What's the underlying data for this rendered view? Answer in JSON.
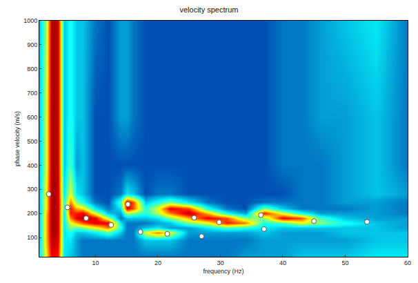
{
  "chart_data": {
    "type": "heatmap",
    "title": "velocity spectrum",
    "x_label": "frequency (Hz)",
    "y_label": "phase velocity (m/s)",
    "xlim": [
      1,
      60
    ],
    "ylim": [
      20,
      1000
    ],
    "xticks": [
      10,
      20,
      30,
      40,
      50,
      60
    ],
    "yticks": [
      100,
      200,
      300,
      400,
      500,
      600,
      700,
      800,
      900,
      1000
    ],
    "grid": false,
    "zlim": [
      0,
      1
    ],
    "heatmap": {
      "x": [
        1,
        2,
        3,
        4,
        5,
        6,
        7,
        8,
        10,
        12,
        14,
        15,
        16,
        18,
        20,
        22,
        25,
        28,
        31,
        34,
        37,
        40,
        43,
        46,
        50,
        55,
        60
      ],
      "y": [
        20,
        90,
        120,
        140,
        160,
        180,
        200,
        220,
        245,
        280,
        400,
        600,
        1000
      ],
      "z_by_x": [
        [
          0.35,
          0.3,
          0.3,
          0.3,
          0.3,
          0.3,
          0.3,
          0.3,
          0.3,
          0.3,
          0.3,
          0.3,
          0.3
        ],
        [
          0.6,
          0.65,
          0.65,
          0.65,
          0.65,
          0.65,
          0.65,
          0.6,
          0.6,
          0.6,
          0.55,
          0.55,
          0.5
        ],
        [
          0.9,
          0.95,
          0.97,
          0.97,
          0.97,
          0.97,
          0.97,
          0.97,
          0.97,
          0.97,
          0.97,
          0.97,
          0.97
        ],
        [
          0.85,
          0.9,
          0.92,
          0.92,
          0.92,
          0.92,
          0.92,
          0.92,
          0.92,
          0.92,
          0.92,
          0.92,
          0.92
        ],
        [
          0.35,
          0.35,
          0.35,
          0.35,
          0.35,
          0.35,
          0.35,
          0.4,
          0.4,
          0.35,
          0.3,
          0.3,
          0.3
        ],
        [
          0.3,
          0.35,
          0.4,
          0.5,
          0.6,
          0.75,
          0.85,
          0.85,
          0.75,
          0.6,
          0.45,
          0.4,
          0.4
        ],
        [
          0.25,
          0.25,
          0.3,
          0.45,
          0.7,
          0.9,
          0.85,
          0.7,
          0.5,
          0.35,
          0.25,
          0.3,
          0.3
        ],
        [
          0.2,
          0.2,
          0.3,
          0.5,
          0.8,
          0.95,
          0.9,
          0.65,
          0.4,
          0.3,
          0.3,
          0.3,
          0.3
        ],
        [
          0.2,
          0.2,
          0.35,
          0.6,
          0.9,
          0.9,
          0.6,
          0.35,
          0.2,
          0.15,
          0.15,
          0.15,
          0.2
        ],
        [
          0.2,
          0.2,
          0.45,
          0.75,
          0.9,
          0.55,
          0.3,
          0.2,
          0.15,
          0.15,
          0.15,
          0.15,
          0.15
        ],
        [
          0.2,
          0.2,
          0.3,
          0.4,
          0.35,
          0.2,
          0.25,
          0.35,
          0.45,
          0.2,
          0.15,
          0.25,
          0.25
        ],
        [
          0.2,
          0.2,
          0.2,
          0.2,
          0.2,
          0.3,
          0.55,
          0.9,
          0.9,
          0.35,
          0.15,
          0.25,
          0.25
        ],
        [
          0.2,
          0.2,
          0.2,
          0.2,
          0.2,
          0.3,
          0.5,
          0.8,
          0.8,
          0.3,
          0.15,
          0.2,
          0.2
        ],
        [
          0.2,
          0.3,
          0.6,
          0.3,
          0.2,
          0.3,
          0.4,
          0.4,
          0.3,
          0.15,
          0.15,
          0.15,
          0.15
        ],
        [
          0.2,
          0.3,
          0.75,
          0.35,
          0.25,
          0.35,
          0.55,
          0.6,
          0.4,
          0.2,
          0.15,
          0.15,
          0.15
        ],
        [
          0.2,
          0.3,
          0.6,
          0.25,
          0.3,
          0.5,
          0.75,
          0.9,
          0.5,
          0.2,
          0.15,
          0.15,
          0.15
        ],
        [
          0.2,
          0.2,
          0.25,
          0.25,
          0.5,
          0.7,
          0.95,
          0.8,
          0.35,
          0.15,
          0.15,
          0.15,
          0.15
        ],
        [
          0.2,
          0.2,
          0.25,
          0.35,
          0.6,
          0.9,
          0.7,
          0.4,
          0.2,
          0.15,
          0.15,
          0.15,
          0.15
        ],
        [
          0.2,
          0.2,
          0.25,
          0.45,
          0.85,
          0.8,
          0.4,
          0.2,
          0.15,
          0.15,
          0.15,
          0.15,
          0.15
        ],
        [
          0.25,
          0.2,
          0.25,
          0.4,
          0.75,
          0.5,
          0.25,
          0.15,
          0.15,
          0.15,
          0.15,
          0.15,
          0.15
        ],
        [
          0.25,
          0.25,
          0.3,
          0.35,
          0.4,
          0.5,
          0.85,
          0.5,
          0.2,
          0.15,
          0.15,
          0.15,
          0.15
        ],
        [
          0.25,
          0.25,
          0.25,
          0.3,
          0.45,
          0.9,
          0.6,
          0.3,
          0.2,
          0.15,
          0.2,
          0.2,
          0.2
        ],
        [
          0.3,
          0.25,
          0.25,
          0.3,
          0.6,
          0.8,
          0.4,
          0.2,
          0.2,
          0.2,
          0.2,
          0.2,
          0.2
        ],
        [
          0.3,
          0.25,
          0.25,
          0.3,
          0.5,
          0.45,
          0.25,
          0.2,
          0.2,
          0.2,
          0.2,
          0.25,
          0.25
        ],
        [
          0.3,
          0.25,
          0.3,
          0.3,
          0.4,
          0.3,
          0.25,
          0.2,
          0.25,
          0.25,
          0.25,
          0.25,
          0.3
        ],
        [
          0.35,
          0.3,
          0.3,
          0.3,
          0.3,
          0.25,
          0.25,
          0.25,
          0.25,
          0.3,
          0.3,
          0.3,
          0.35
        ],
        [
          0.35,
          0.3,
          0.3,
          0.25,
          0.25,
          0.25,
          0.2,
          0.2,
          0.2,
          0.25,
          0.2,
          0.2,
          0.2
        ]
      ]
    },
    "points": {
      "type": "scatter",
      "marker": "circle",
      "color": "#ffffff",
      "x": [
        2.5,
        5.5,
        8.5,
        12.5,
        15.2,
        17.2,
        21.5,
        25.8,
        27,
        29.8,
        36.5,
        37,
        45,
        53.5
      ],
      "y": [
        280,
        225,
        180,
        152,
        238,
        123,
        115,
        182,
        105,
        163,
        193,
        135,
        168,
        165
      ]
    }
  }
}
